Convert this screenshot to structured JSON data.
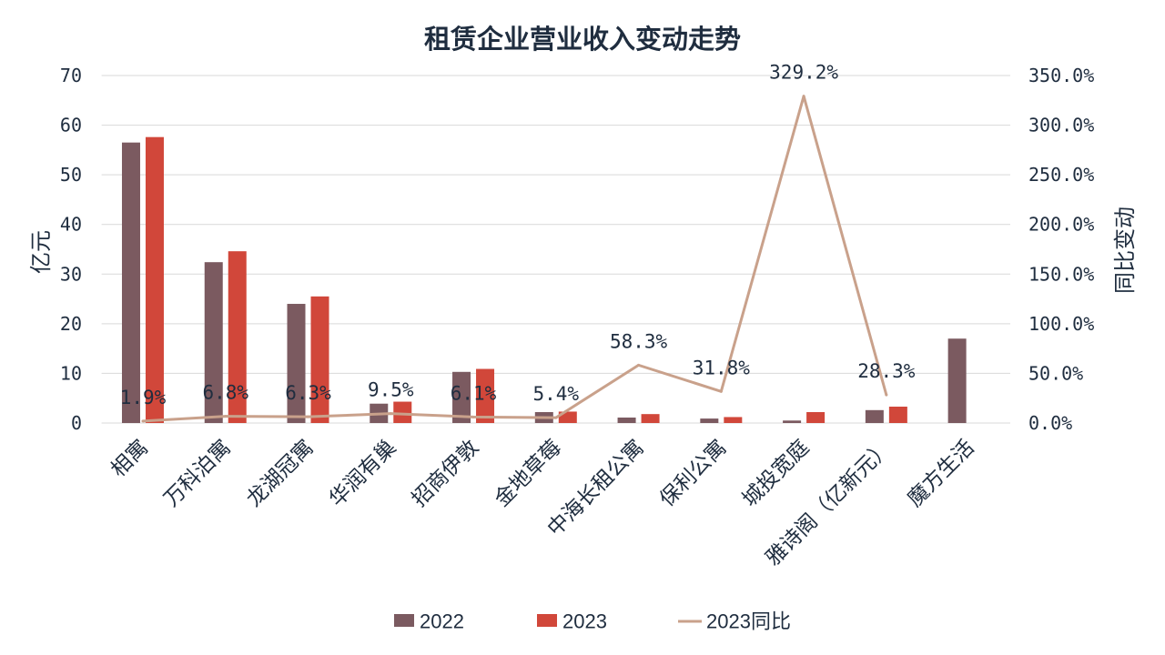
{
  "chart_data": {
    "type": "bar",
    "title": "租赁企业营业收入变动走势",
    "ylabel": "亿元",
    "y2label": "同比变动",
    "categories": [
      "相寓",
      "万科泊寓",
      "龙湖冠寓",
      "华润有巢",
      "招商伊敦",
      "金地草莓",
      "中海长租公寓",
      "保利公寓",
      "城投宽庭",
      "雅诗阁（亿新元）",
      "魔方生活"
    ],
    "ylim": [
      0,
      70
    ],
    "y_ticks": [
      "0",
      "10",
      "20",
      "30",
      "40",
      "50",
      "60",
      "70"
    ],
    "y2lim": [
      0,
      350
    ],
    "y2_ticks": [
      "0.0%",
      "50.0%",
      "100.0%",
      "150.0%",
      "200.0%",
      "250.0%",
      "300.0%",
      "350.0%"
    ],
    "series": [
      {
        "name": "2022",
        "type": "bar",
        "axis": "left",
        "color": "#7b5a60",
        "values": [
          56.5,
          32.4,
          24.0,
          3.9,
          10.3,
          2.2,
          1.1,
          0.9,
          0.5,
          2.6,
          17.0
        ]
      },
      {
        "name": "2023",
        "type": "bar",
        "axis": "left",
        "color": "#d1473a",
        "values": [
          57.6,
          34.6,
          25.5,
          4.3,
          10.9,
          2.3,
          1.8,
          1.2,
          2.2,
          3.3,
          null
        ]
      },
      {
        "name": "2023同比",
        "type": "line",
        "axis": "right",
        "color": "#c9a18b",
        "values": [
          1.9,
          6.8,
          6.3,
          9.5,
          6.1,
          5.4,
          58.3,
          31.8,
          329.2,
          28.3,
          null
        ],
        "labels": [
          "1.9%",
          "6.8%",
          "6.3%",
          "9.5%",
          "6.1%",
          "5.4%",
          "58.3%",
          "31.8%",
          "329.2%",
          "28.3%",
          null
        ]
      }
    ],
    "grid": true,
    "legend_position": "bottom"
  }
}
